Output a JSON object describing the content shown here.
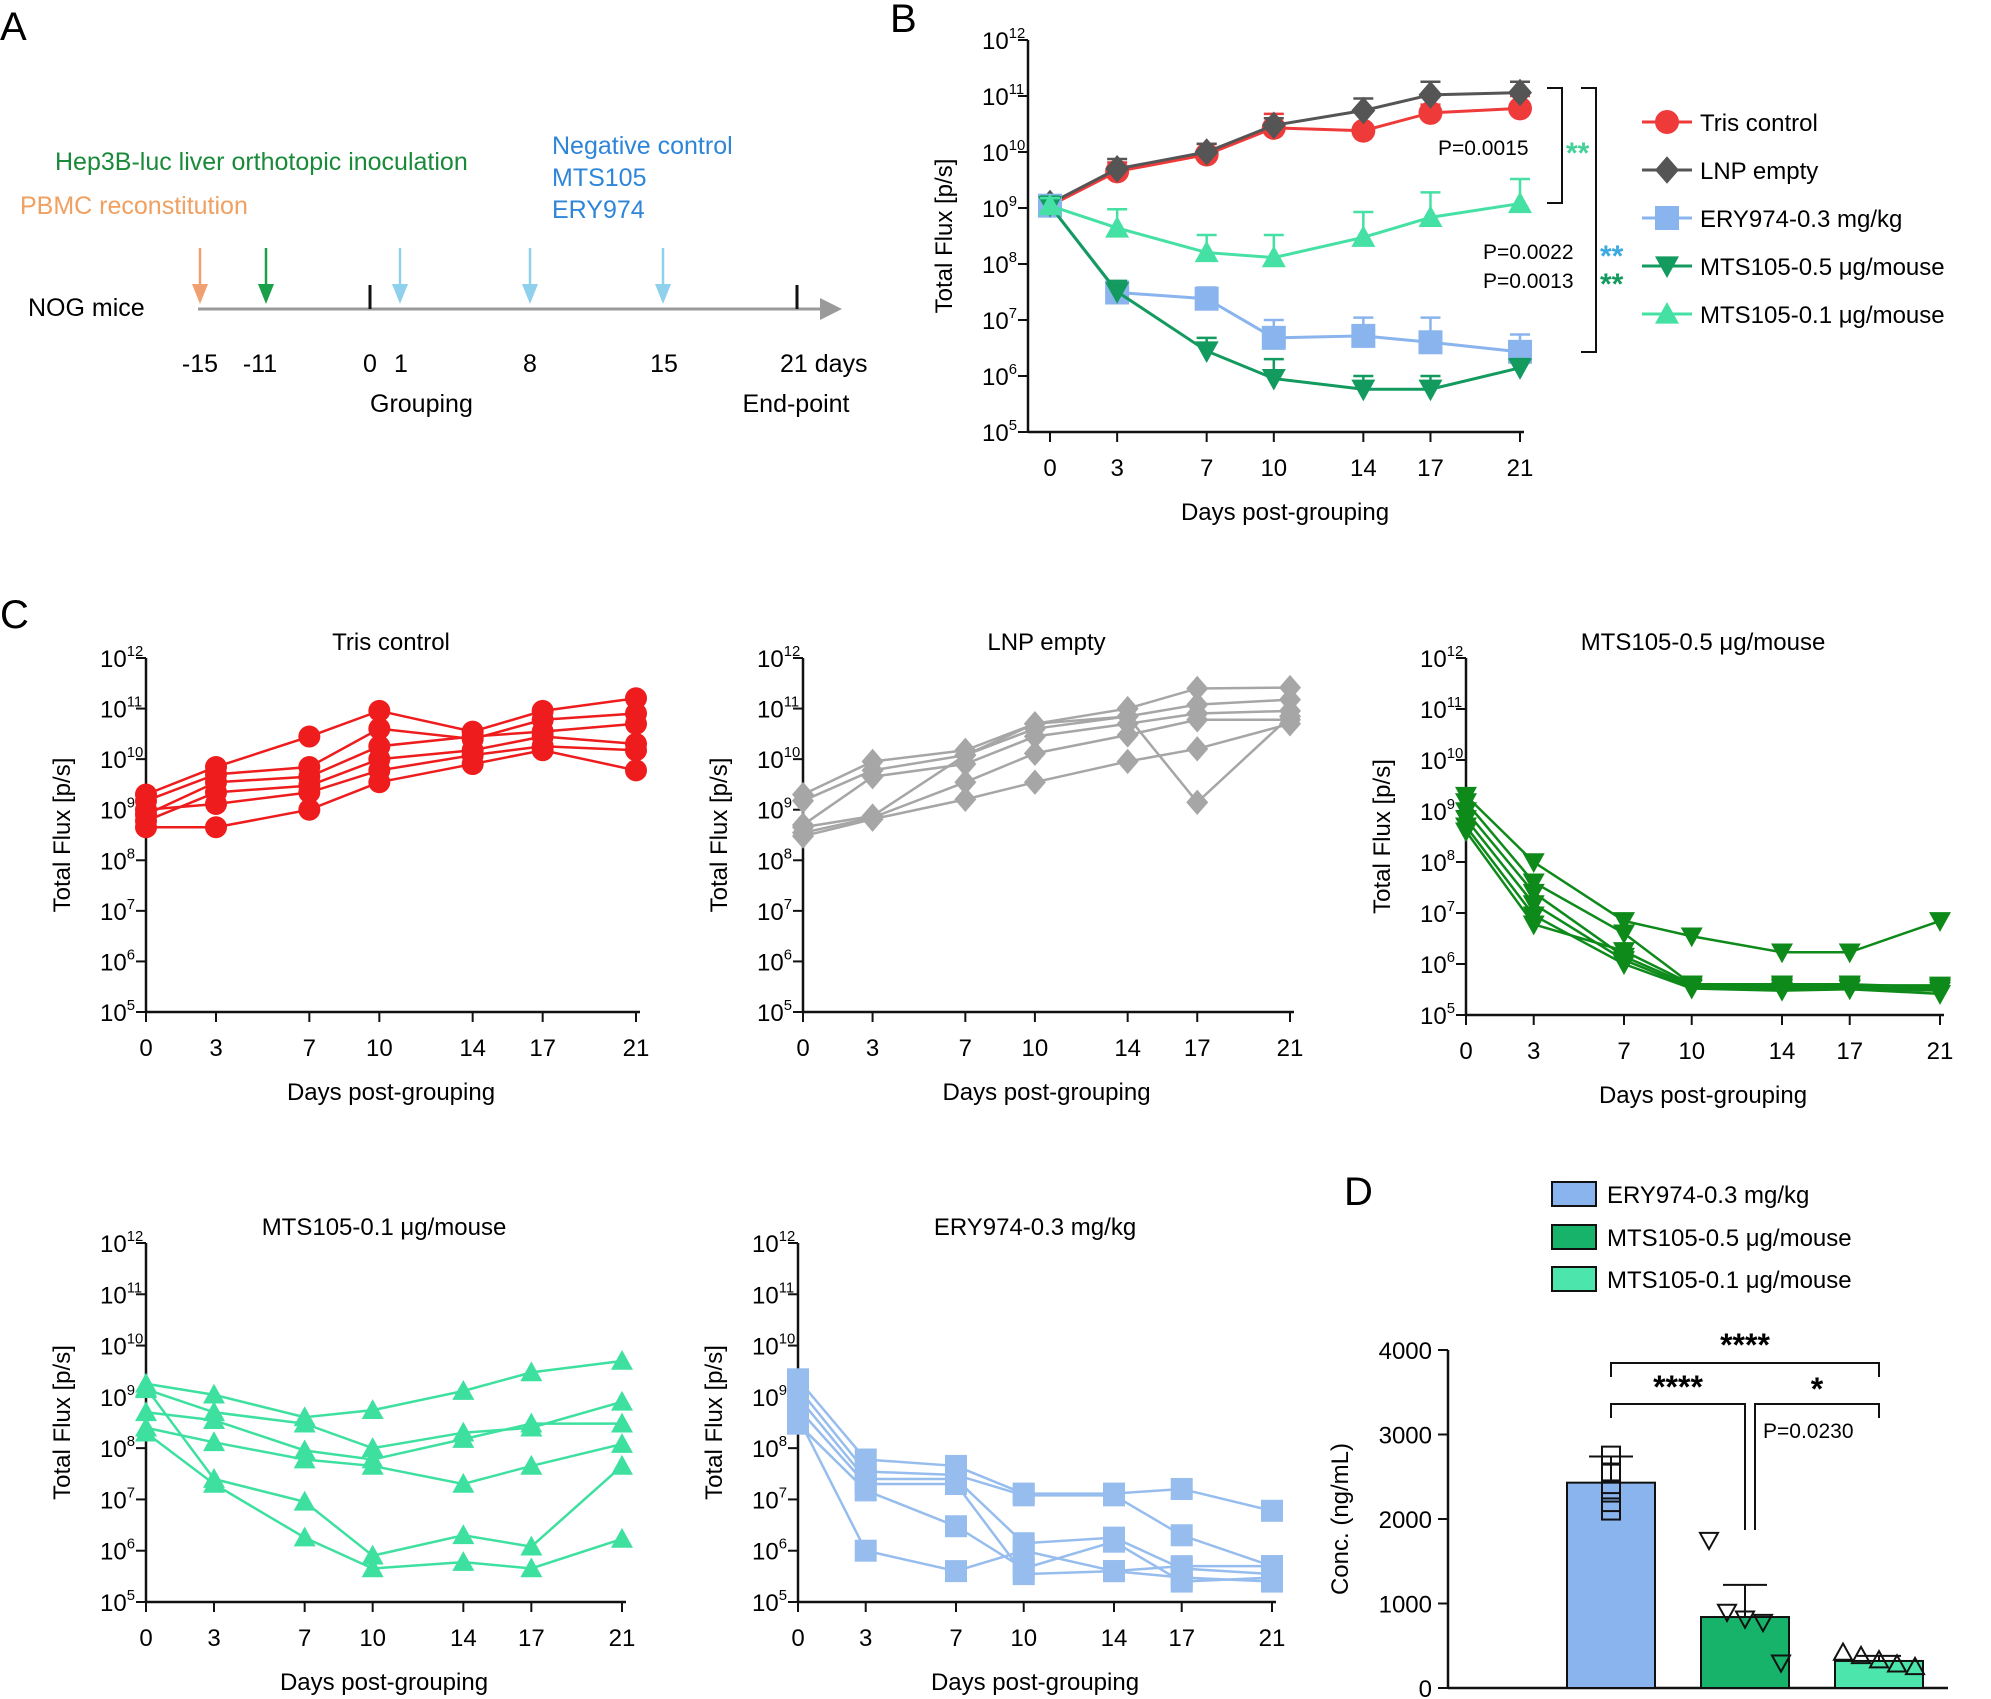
{
  "panel_labels": {
    "a": "A",
    "b": "B",
    "c": "C",
    "d": "D"
  },
  "timeline": {
    "subject": "NOG mice",
    "events": [
      {
        "text": "PBMC reconstitution",
        "color": "#f0a060"
      },
      {
        "text": "Hep3B-luc liver orthotopic inoculation",
        "color": "#1a8a3a"
      },
      {
        "text": "Negative control",
        "color": "#2f86d8"
      },
      {
        "text": "MTS105",
        "color": "#2f86d8"
      },
      {
        "text": "ERY974",
        "color": "#2f86d8"
      }
    ],
    "ticks": [
      "-15",
      "-11",
      "0",
      "1",
      "8",
      "15",
      "21 days"
    ],
    "below": [
      "Grouping",
      "End-point"
    ]
  },
  "chart_data": [
    {
      "id": "B",
      "type": "line",
      "scale": "log10",
      "ylim_exp": [
        5,
        12
      ],
      "xlim": [
        0,
        21
      ],
      "x": [
        0,
        3,
        7,
        10,
        14,
        17,
        21
      ],
      "xlabel": "Days post-grouping",
      "ylabel": "Total Flux [p/s]",
      "series": [
        {
          "name": "Tris control",
          "color": "#ef3a3a",
          "marker": "circle",
          "values": [
            1100000000.0,
            4500000000.0,
            9000000000.0,
            27000000000.0,
            24000000000.0,
            50000000000.0,
            60000000000.0
          ],
          "err_up": [
            1500000000.0,
            6500000000.0,
            14000000000.0,
            48000000000.0,
            30000000000.0,
            70000000000.0,
            100000000000.0
          ]
        },
        {
          "name": "LNP empty",
          "color": "#555555",
          "marker": "diamond",
          "values": [
            1200000000.0,
            5000000000.0,
            10000000000.0,
            30000000000.0,
            55000000000.0,
            105000000000.0,
            115000000000.0
          ],
          "err_up": [
            1400000000.0,
            7500000000.0,
            14000000000.0,
            40000000000.0,
            90000000000.0,
            180000000000.0,
            180000000000.0
          ]
        },
        {
          "name": "ERY974-0.3 mg/kg",
          "color": "#8ab4ee",
          "marker": "square",
          "values": [
            1100000000.0,
            31000000.0,
            24000000.0,
            4800000.0,
            5200000.0,
            4000000.0,
            2700000.0
          ],
          "err_up": [
            1500000000.0,
            45000000.0,
            38000000.0,
            10000000.0,
            11000000.0,
            11000000.0,
            5500000.0
          ]
        },
        {
          "name": "MTS105-0.5 μg/mouse",
          "color": "#139a5e",
          "marker": "triangle-down",
          "values": [
            1100000000.0,
            32000000.0,
            2800000.0,
            900000.0,
            580000.0,
            580000.0,
            1400000.0
          ],
          "err_up": [
            1600000000.0,
            50000000.0,
            4800000.0,
            2000000.0,
            1000000.0,
            1000000.0,
            2000000.0
          ]
        },
        {
          "name": "MTS105-0.1 μg/mouse",
          "color": "#45e0a4",
          "marker": "triangle-up",
          "values": [
            1100000000.0,
            440000000.0,
            160000000.0,
            130000000.0,
            300000000.0,
            680000000.0,
            1200000000.0
          ],
          "err_up": [
            1500000000.0,
            950000000.0,
            330000000.0,
            330000000.0,
            850000000.0,
            1900000000.0,
            3300000000.0
          ]
        }
      ],
      "annotations": {
        "p1": "P=0.0015",
        "p2": "P=0.0022",
        "p3": "P=0.0013",
        "star1": "**",
        "star2": "**",
        "star3": "**",
        "star1_color": "#45d09a",
        "star2_color": "#3aaae0",
        "star3_color": "#139a5e"
      }
    },
    {
      "id": "C1",
      "title": "Tris control",
      "type": "line",
      "scale": "log10",
      "color": "#ee1c1c",
      "marker": "circle",
      "xlabel": "Days post-grouping",
      "ylabel": "Total Flux [p/s]",
      "x": [
        0,
        3,
        7,
        10,
        14,
        17,
        21
      ],
      "lines": [
        [
          2000000000.0,
          7000000000.0,
          28000000000.0,
          90000000000.0,
          35000000000.0,
          90000000000.0,
          160000000000.0
        ],
        [
          1500000000.0,
          5000000000.0,
          7000000000.0,
          40000000000.0,
          25000000000.0,
          60000000000.0,
          80000000000.0
        ],
        [
          800000000.0,
          3500000000.0,
          4500000000.0,
          18000000000.0,
          28000000000.0,
          35000000000.0,
          50000000000.0
        ],
        [
          600000000.0,
          2200000000.0,
          3000000000.0,
          10000000000.0,
          15000000000.0,
          28000000000.0,
          20000000000.0
        ],
        [
          1000000000.0,
          1300000000.0,
          2200000000.0,
          6000000000.0,
          12000000000.0,
          18000000000.0,
          15000000000.0
        ],
        [
          450000000.0,
          450000000.0,
          1000000000.0,
          3500000000.0,
          8000000000.0,
          15000000000.0,
          6000000000.0
        ]
      ]
    },
    {
      "id": "C2",
      "title": "LNP empty",
      "type": "line",
      "scale": "log10",
      "color": "#a6a6a6",
      "marker": "diamond",
      "xlabel": "Days post-grouping",
      "ylabel": "Total Flux [p/s]",
      "x": [
        0,
        3,
        7,
        10,
        14,
        17,
        21
      ],
      "lines": [
        [
          2000000000.0,
          9000000000.0,
          15000000000.0,
          50000000000.0,
          100000000000.0,
          250000000000.0,
          260000000000.0
        ],
        [
          1500000000.0,
          6000000000.0,
          12000000000.0,
          40000000000.0,
          70000000000.0,
          120000000000.0,
          150000000000.0
        ],
        [
          500000000.0,
          4500000000.0,
          8000000000.0,
          28000000000.0,
          50000000000.0,
          80000000000.0,
          90000000000.0
        ],
        [
          350000000.0,
          700000000.0,
          3500000000.0,
          13000000000.0,
          30000000000.0,
          60000000000.0,
          60000000000.0
        ],
        [
          300000000.0,
          650000000.0,
          1600000000.0,
          3500000000.0,
          9000000000.0,
          16000000000.0,
          50000000000.0
        ],
        [
          450000000.0,
          750000000.0,
          12000000000.0,
          50000000000.0,
          70000000000.0,
          1400000000.0,
          70000000000.0
        ]
      ]
    },
    {
      "id": "C3",
      "title": "MTS105-0.5 μg/mouse",
      "type": "line",
      "scale": "log10",
      "color": "#0e8a1a",
      "marker": "triangle-down",
      "xlabel": "Days post-grouping",
      "ylabel": "Total Flux [p/s]",
      "x": [
        0,
        3,
        7,
        10,
        14,
        17,
        21
      ],
      "lines": [
        [
          2000000000.0,
          100000000.0,
          7000000.0,
          3500000.0,
          1700000.0,
          1700000.0,
          7000000.0
        ],
        [
          1500000000.0,
          40000000.0,
          4000000.0,
          400000.0,
          380000.0,
          380000.0,
          380000.0
        ],
        [
          1000000000.0,
          25000000.0,
          1400000.0,
          380000.0,
          350000.0,
          350000.0,
          330000.0
        ],
        [
          700000000.0,
          15000000.0,
          1200000.0,
          350000.0,
          330000.0,
          330000.0,
          300000.0
        ],
        [
          500000000.0,
          9000000.0,
          1000000.0,
          330000.0,
          300000.0,
          320000.0,
          260000.0
        ],
        [
          400000000.0,
          6000000.0,
          1800000.0,
          400000.0,
          400000.0,
          400000.0,
          350000.0
        ]
      ]
    },
    {
      "id": "C4",
      "title": "MTS105-0.1 μg/mouse",
      "type": "line",
      "scale": "log10",
      "color": "#3ee0a0",
      "marker": "triangle-up",
      "xlabel": "Days post-grouping",
      "ylabel": "Total Flux [p/s]",
      "x": [
        0,
        3,
        7,
        10,
        14,
        17,
        21
      ],
      "lines": [
        [
          1800000000.0,
          1100000000.0,
          400000000.0,
          550000000.0,
          1300000000.0,
          3000000000.0,
          5000000000.0
        ],
        [
          1400000000.0,
          500000000.0,
          300000000.0,
          100000000.0,
          200000000.0,
          250000000.0,
          800000000.0
        ],
        [
          500000000.0,
          350000000.0,
          90000000.0,
          60000000.0,
          150000000.0,
          300000000.0,
          300000000.0
        ],
        [
          250000000.0,
          130000000.0,
          60000000.0,
          45000000.0,
          20000000.0,
          45000000.0,
          120000000.0
        ],
        [
          1500000000.0,
          25000000.0,
          9000000.0,
          800000.0,
          2000000.0,
          1200000.0,
          45000000.0
        ],
        [
          200000000.0,
          20000000.0,
          1800000.0,
          450000.0,
          600000.0,
          450000.0,
          1700000.0
        ]
      ]
    },
    {
      "id": "C5",
      "title": "ERY974-0.3 mg/kg",
      "type": "line",
      "scale": "log10",
      "color": "#96bdee",
      "marker": "square",
      "xlabel": "Days post-grouping",
      "ylabel": "Total Flux [p/s]",
      "x": [
        0,
        3,
        7,
        10,
        14,
        17,
        21
      ],
      "lines": [
        [
          2200000000.0,
          60000000.0,
          45000000.0,
          13000000.0,
          13000000.0,
          16000000.0,
          6000000.0
        ],
        [
          1500000000.0,
          35000000.0,
          30000000.0,
          12000000.0,
          12000000.0,
          2000000.0,
          500000.0
        ],
        [
          1000000000.0,
          25000000.0,
          25000000.0,
          1400000.0,
          1800000.0,
          450000.0,
          350000.0
        ],
        [
          600000000.0,
          20000000.0,
          20000000.0,
          350000.0,
          400000.0,
          300000.0,
          250000.0
        ],
        [
          400000000.0,
          1000000.0,
          400000.0,
          1000000.0,
          400000.0,
          500000.0,
          500000.0
        ],
        [
          300000000.0,
          15000000.0,
          3000000.0,
          450000.0,
          1500000.0,
          250000.0,
          300000.0
        ]
      ]
    },
    {
      "id": "D",
      "type": "bar",
      "ylabel": "Conc. (ng/mL)",
      "ylim": [
        0,
        4000
      ],
      "yticks": [
        0,
        1000,
        2000,
        3000,
        4000
      ],
      "categories": [
        "ERY974-0.3 mg/kg",
        "MTS105-0.5 μg/mouse",
        "MTS105-0.1 μg/mouse"
      ],
      "colors": [
        "#8ab4ee",
        "#17b36a",
        "#4ce6ac"
      ],
      "values": [
        2430,
        840,
        320
      ],
      "err": [
        310,
        380,
        60
      ],
      "points": [
        [
          2750,
          2550,
          2350,
          2200,
          2100
        ],
        [
          1750,
          900,
          820,
          780,
          300
        ],
        [
          420,
          380,
          330,
          280,
          250
        ]
      ],
      "sig": {
        "s1": "****",
        "s2": "****",
        "s3": "*",
        "p": "P=0.0230"
      }
    }
  ]
}
